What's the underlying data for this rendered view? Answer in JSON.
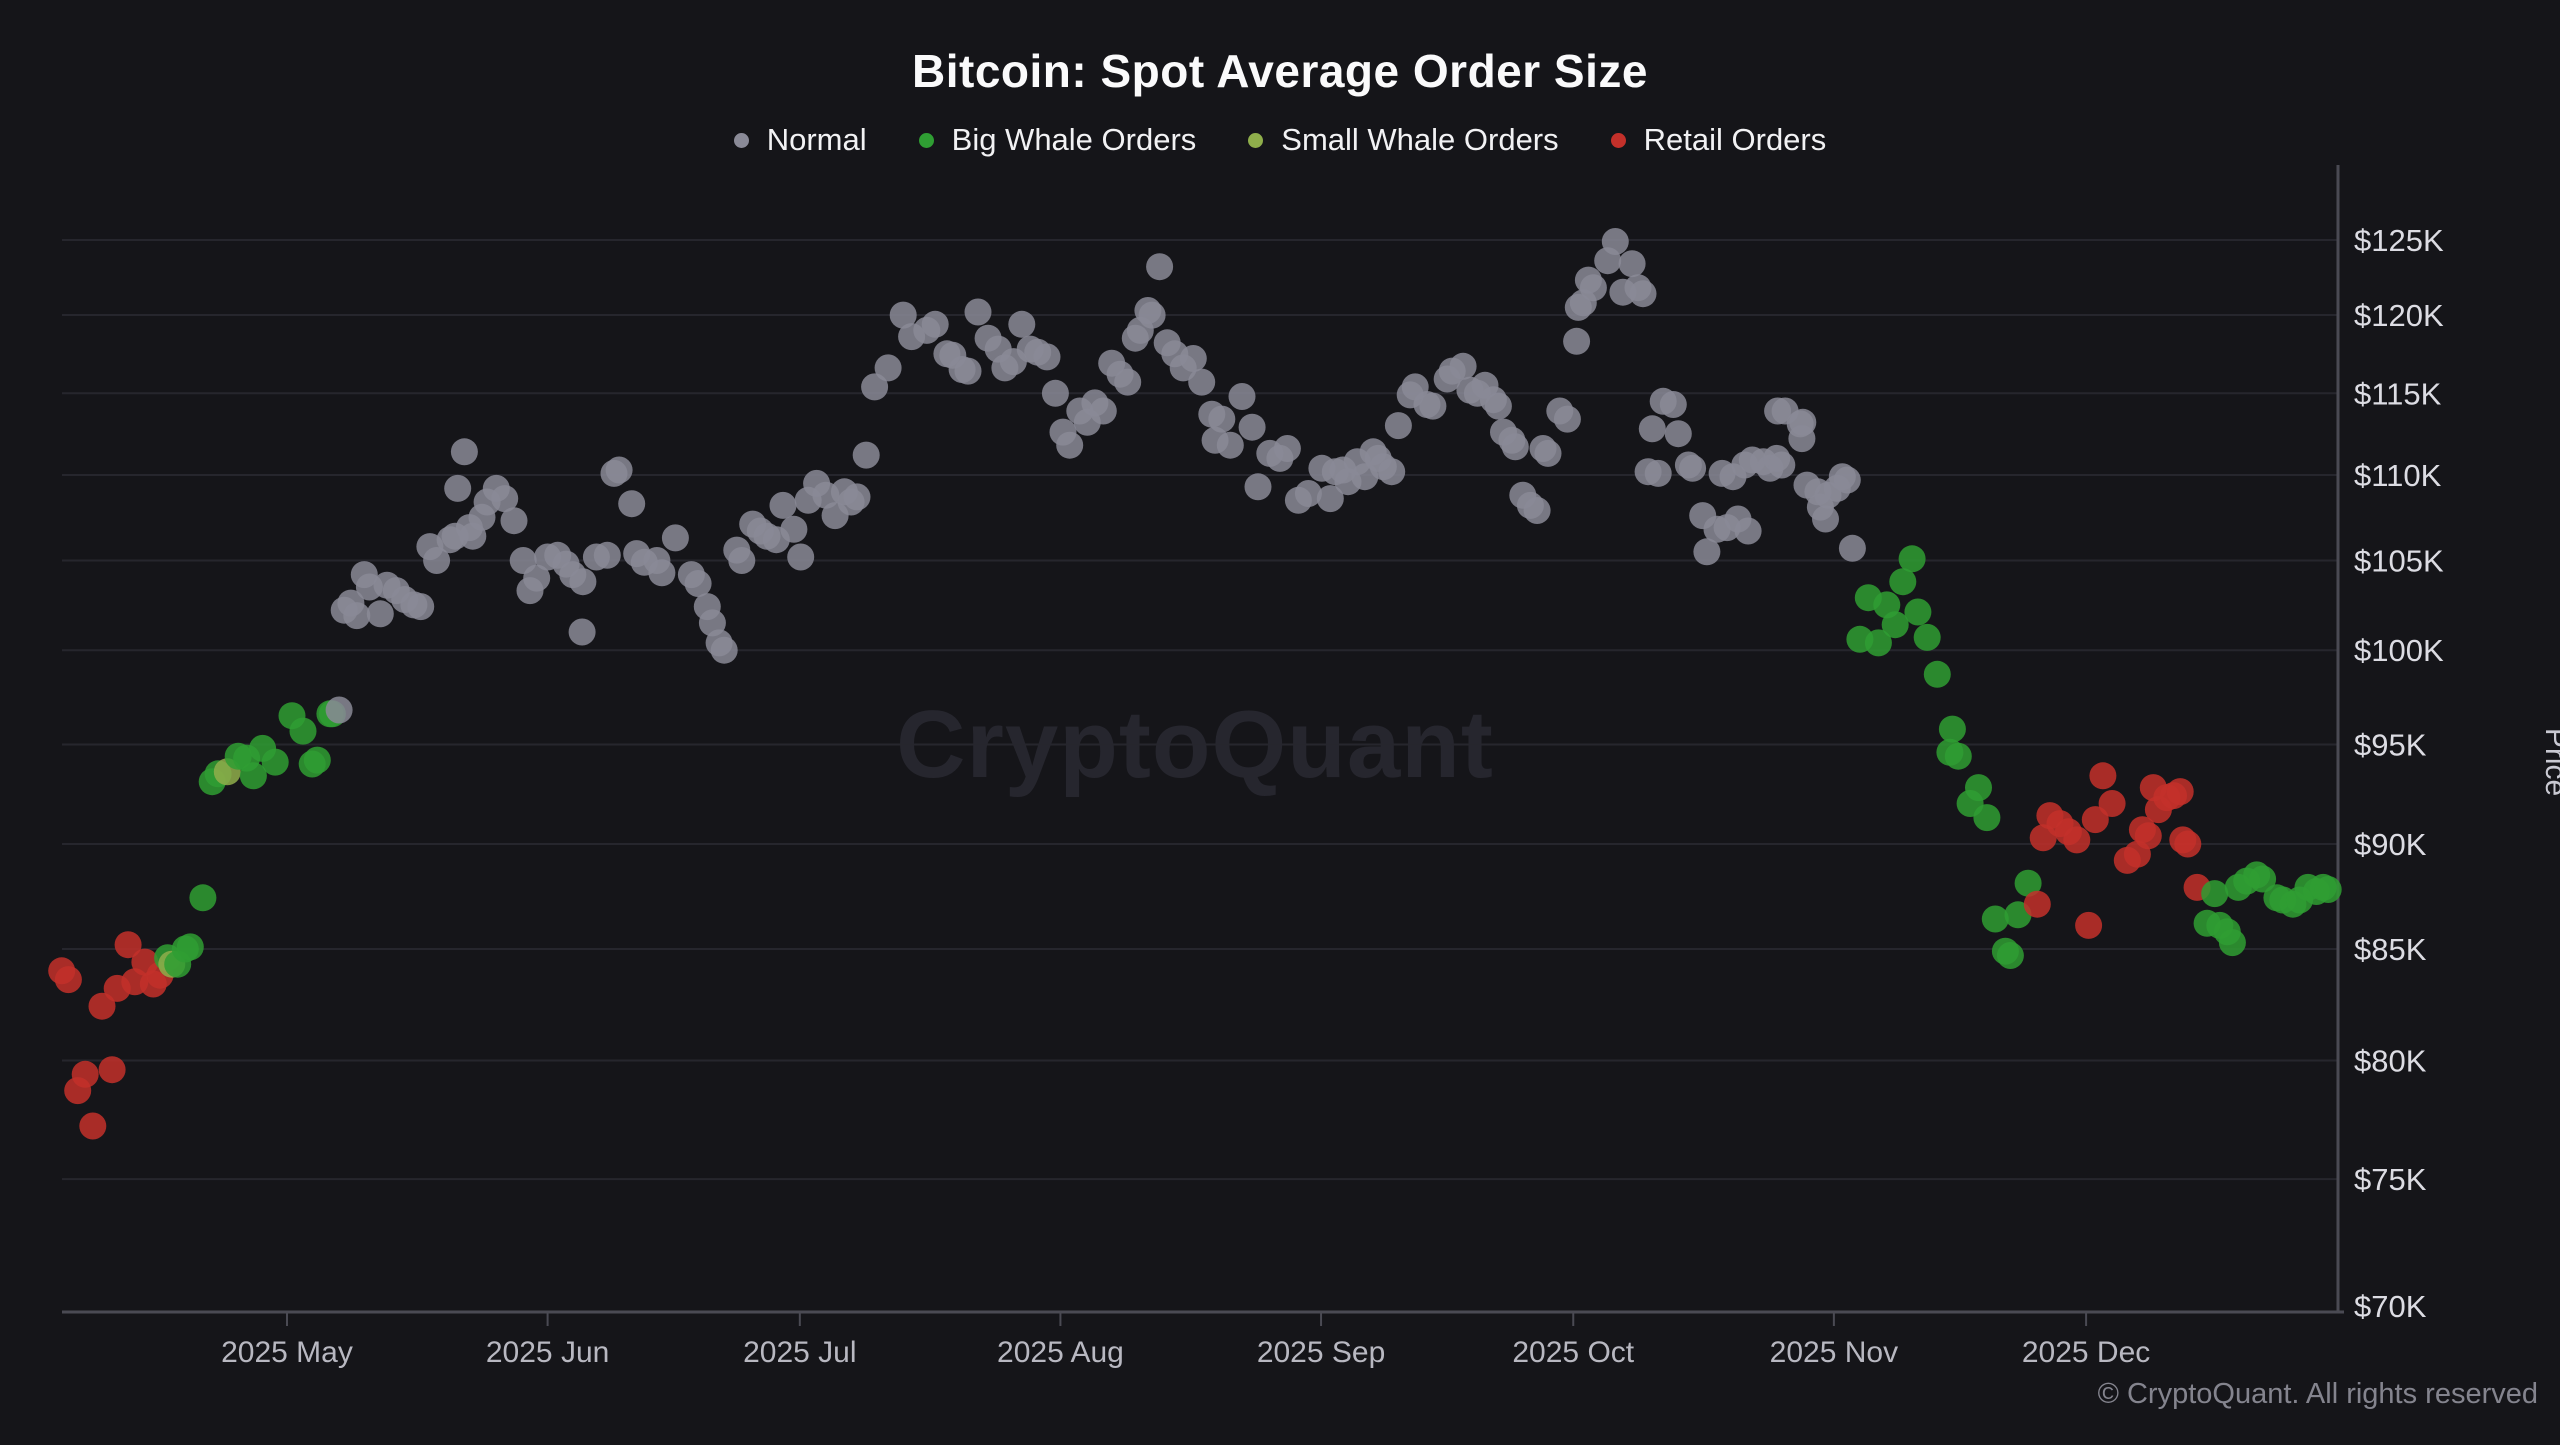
{
  "title": "Bitcoin: Spot Average Order Size",
  "watermark": "CryptoQuant",
  "footer": "© CryptoQuant. All rights reserved",
  "legend": {
    "items": [
      {
        "label": "Normal",
        "color": "#8a8a97"
      },
      {
        "label": "Big Whale Orders",
        "color": "#2f9e33"
      },
      {
        "label": "Small Whale Orders",
        "color": "#8fae4b"
      },
      {
        "label": "Retail Orders",
        "color": "#c3302a"
      }
    ]
  },
  "chart_data": {
    "type": "scatter",
    "title": "Bitcoin: Spot Average Order Size",
    "y_axis": {
      "title": "Price",
      "scale": "log",
      "unit": "USD thousands",
      "ylim": [
        70,
        125
      ],
      "tick_values": [
        125,
        120,
        115,
        110,
        105,
        100,
        95,
        90,
        85,
        80,
        75,
        70
      ],
      "tick_labels": [
        "$125K",
        "$120K",
        "$115K",
        "$110K",
        "$105K",
        "$100K",
        "$95K",
        "$90K",
        "$85K",
        "$80K",
        "$75K",
        "$70K"
      ],
      "grid": true
    },
    "x_axis": {
      "anchor_date": "2025-04-04",
      "unit": "days since anchor_date",
      "range_days": [
        0,
        271
      ],
      "month_ticks": [
        {
          "label": "2025 May",
          "day": 27
        },
        {
          "label": "2025 Jun",
          "day": 58
        },
        {
          "label": "2025 Jul",
          "day": 88
        },
        {
          "label": "2025 Aug",
          "day": 119
        },
        {
          "label": "2025 Sep",
          "day": 150
        },
        {
          "label": "2025 Oct",
          "day": 180
        },
        {
          "label": "2025 Nov",
          "day": 211
        },
        {
          "label": "2025 Dec",
          "day": 241
        }
      ]
    },
    "categories": [
      "Normal",
      "Big Whale Orders",
      "Small Whale Orders",
      "Retail Orders"
    ],
    "category_colors": [
      "#8a8a97",
      "#2f9e33",
      "#8fae4b",
      "#c3302a"
    ],
    "point_format": "[day_offset, price_k_usd, category_index]",
    "points": [
      [
        0.2,
        84.0,
        3
      ],
      [
        1.0,
        83.6,
        3
      ],
      [
        2.1,
        78.7,
        3
      ],
      [
        3.0,
        79.4,
        3
      ],
      [
        3.9,
        77.2,
        3
      ],
      [
        5.0,
        82.4,
        3
      ],
      [
        6.2,
        79.6,
        3
      ],
      [
        6.8,
        83.2,
        3
      ],
      [
        8.1,
        85.2,
        3
      ],
      [
        8.9,
        83.5,
        3
      ],
      [
        10.1,
        84.4,
        3
      ],
      [
        11.1,
        83.4,
        3
      ],
      [
        11.9,
        83.8,
        3
      ],
      [
        12.8,
        84.6,
        1
      ],
      [
        13.3,
        84.3,
        2
      ],
      [
        14.0,
        84.3,
        1
      ],
      [
        14.9,
        85.0,
        1
      ],
      [
        15.5,
        85.1,
        1
      ],
      [
        17.0,
        87.4,
        1
      ],
      [
        18.1,
        93.1,
        1
      ],
      [
        18.8,
        93.5,
        1
      ],
      [
        19.9,
        93.6,
        2
      ],
      [
        21.2,
        94.4,
        1
      ],
      [
        22.2,
        94.3,
        1
      ],
      [
        23.0,
        93.4,
        1
      ],
      [
        24.1,
        94.8,
        1
      ],
      [
        25.6,
        94.1,
        1
      ],
      [
        27.6,
        96.5,
        1
      ],
      [
        28.9,
        95.7,
        1
      ],
      [
        30.0,
        94.0,
        1
      ],
      [
        30.6,
        94.2,
        1
      ],
      [
        32.1,
        96.6,
        1
      ],
      [
        32.4,
        96.6,
        1
      ],
      [
        33.2,
        96.8,
        0
      ],
      [
        33.8,
        102.2,
        0
      ],
      [
        34.6,
        102.6,
        0
      ],
      [
        35.3,
        101.9,
        0
      ],
      [
        36.2,
        104.2,
        0
      ],
      [
        36.8,
        103.5,
        0
      ],
      [
        38.1,
        102.0,
        0
      ],
      [
        38.9,
        103.6,
        0
      ],
      [
        40.0,
        103.3,
        0
      ],
      [
        41.0,
        102.8,
        0
      ],
      [
        42.1,
        102.5,
        0
      ],
      [
        42.9,
        102.4,
        0
      ],
      [
        44.0,
        105.8,
        0
      ],
      [
        44.8,
        105.0,
        0
      ],
      [
        46.4,
        106.2,
        0
      ],
      [
        47.0,
        106.4,
        0
      ],
      [
        47.3,
        109.2,
        0
      ],
      [
        48.1,
        111.4,
        0
      ],
      [
        48.7,
        106.9,
        0
      ],
      [
        49.1,
        106.4,
        0
      ],
      [
        50.2,
        107.5,
        0
      ],
      [
        50.8,
        108.4,
        0
      ],
      [
        51.9,
        109.2,
        0
      ],
      [
        52.9,
        108.6,
        0
      ],
      [
        54.0,
        107.3,
        0
      ],
      [
        55.1,
        105.0,
        0
      ],
      [
        55.9,
        103.3,
        0
      ],
      [
        56.7,
        104.0,
        0
      ],
      [
        58.0,
        105.2,
        0
      ],
      [
        59.2,
        105.3,
        0
      ],
      [
        60.2,
        104.8,
        0
      ],
      [
        61.0,
        104.2,
        0
      ],
      [
        62.1,
        101.0,
        0
      ],
      [
        62.2,
        103.8,
        0
      ],
      [
        63.8,
        105.2,
        0
      ],
      [
        65.1,
        105.3,
        0
      ],
      [
        65.9,
        110.1,
        0
      ],
      [
        66.5,
        110.3,
        0
      ],
      [
        68.0,
        108.3,
        0
      ],
      [
        68.6,
        105.4,
        0
      ],
      [
        69.5,
        104.9,
        0
      ],
      [
        71.0,
        105.0,
        0
      ],
      [
        71.6,
        104.3,
        0
      ],
      [
        73.2,
        106.3,
        0
      ],
      [
        75.1,
        104.2,
        0
      ],
      [
        75.9,
        103.7,
        0
      ],
      [
        77.0,
        102.4,
        0
      ],
      [
        77.6,
        101.5,
        0
      ],
      [
        78.4,
        100.4,
        0
      ],
      [
        79.0,
        100.0,
        0
      ],
      [
        80.5,
        105.6,
        0
      ],
      [
        81.1,
        105.0,
        0
      ],
      [
        82.4,
        107.1,
        0
      ],
      [
        83.3,
        106.7,
        0
      ],
      [
        84.1,
        106.4,
        0
      ],
      [
        85.2,
        106.2,
        0
      ],
      [
        86.0,
        108.2,
        0
      ],
      [
        87.3,
        106.8,
        0
      ],
      [
        88.1,
        105.2,
        0
      ],
      [
        89.0,
        108.5,
        0
      ],
      [
        90.0,
        109.5,
        0
      ],
      [
        91.1,
        108.8,
        0
      ],
      [
        92.2,
        107.6,
        0
      ],
      [
        93.3,
        109.0,
        0
      ],
      [
        94.1,
        108.4,
        0
      ],
      [
        94.8,
        108.7,
        0
      ],
      [
        95.9,
        111.2,
        0
      ],
      [
        96.9,
        115.4,
        0
      ],
      [
        98.5,
        116.6,
        0
      ],
      [
        100.3,
        120.0,
        0
      ],
      [
        101.3,
        118.6,
        0
      ],
      [
        103.1,
        119.0,
        0
      ],
      [
        104.1,
        119.4,
        0
      ],
      [
        105.5,
        117.5,
        0
      ],
      [
        106.2,
        117.4,
        0
      ],
      [
        107.3,
        116.5,
        0
      ],
      [
        108.0,
        116.4,
        0
      ],
      [
        109.2,
        120.2,
        0
      ],
      [
        110.4,
        118.5,
        0
      ],
      [
        111.6,
        117.8,
        0
      ],
      [
        112.4,
        116.6,
        0
      ],
      [
        113.4,
        117.0,
        0
      ],
      [
        114.4,
        119.4,
        0
      ],
      [
        115.4,
        117.8,
        0
      ],
      [
        116.3,
        117.6,
        0
      ],
      [
        117.4,
        117.3,
        0
      ],
      [
        118.4,
        115.0,
        0
      ],
      [
        119.3,
        112.6,
        0
      ],
      [
        120.1,
        111.8,
        0
      ],
      [
        121.3,
        113.9,
        0
      ],
      [
        122.2,
        113.2,
        0
      ],
      [
        123.1,
        114.4,
        0
      ],
      [
        124.1,
        113.9,
        0
      ],
      [
        125.1,
        116.9,
        0
      ],
      [
        126.1,
        116.2,
        0
      ],
      [
        127.0,
        115.7,
        0
      ],
      [
        127.9,
        118.5,
        0
      ],
      [
        128.5,
        119.0,
        0
      ],
      [
        129.4,
        120.3,
        0
      ],
      [
        129.9,
        120.0,
        0
      ],
      [
        130.8,
        123.2,
        0
      ],
      [
        131.7,
        118.2,
        0
      ],
      [
        132.6,
        117.5,
        0
      ],
      [
        133.6,
        116.6,
        0
      ],
      [
        134.8,
        117.2,
        0
      ],
      [
        135.8,
        115.7,
        0
      ],
      [
        137.0,
        113.7,
        0
      ],
      [
        137.4,
        112.1,
        0
      ],
      [
        138.2,
        113.4,
        0
      ],
      [
        139.2,
        111.8,
        0
      ],
      [
        140.6,
        114.8,
        0
      ],
      [
        141.8,
        112.9,
        0
      ],
      [
        142.5,
        109.3,
        0
      ],
      [
        143.9,
        111.3,
        0
      ],
      [
        145.1,
        111.0,
        0
      ],
      [
        146.0,
        111.6,
        0
      ],
      [
        147.3,
        108.5,
        0
      ],
      [
        148.5,
        108.9,
        0
      ],
      [
        150.1,
        110.4,
        0
      ],
      [
        151.1,
        108.6,
        0
      ],
      [
        151.7,
        110.2,
        0
      ],
      [
        152.6,
        110.3,
        0
      ],
      [
        153.2,
        109.6,
        0
      ],
      [
        154.3,
        110.8,
        0
      ],
      [
        155.2,
        109.9,
        0
      ],
      [
        156.2,
        111.4,
        0
      ],
      [
        156.8,
        111.0,
        0
      ],
      [
        157.4,
        110.5,
        0
      ],
      [
        158.4,
        110.2,
        0
      ],
      [
        159.2,
        113.0,
        0
      ],
      [
        160.6,
        114.9,
        0
      ],
      [
        161.2,
        115.4,
        0
      ],
      [
        162.6,
        114.3,
        0
      ],
      [
        163.3,
        114.2,
        0
      ],
      [
        165.0,
        115.9,
        0
      ],
      [
        165.6,
        116.4,
        0
      ],
      [
        166.9,
        116.7,
        0
      ],
      [
        167.7,
        115.2,
        0
      ],
      [
        168.6,
        115.0,
        0
      ],
      [
        169.5,
        115.5,
        0
      ],
      [
        170.5,
        114.6,
        0
      ],
      [
        171.1,
        114.2,
        0
      ],
      [
        171.7,
        112.6,
        0
      ],
      [
        172.7,
        112.1,
        0
      ],
      [
        173.1,
        111.7,
        0
      ],
      [
        174.0,
        108.8,
        0
      ],
      [
        174.9,
        108.2,
        0
      ],
      [
        175.7,
        107.9,
        0
      ],
      [
        176.4,
        111.6,
        0
      ],
      [
        177.0,
        111.3,
        0
      ],
      [
        178.4,
        113.9,
        0
      ],
      [
        179.3,
        113.4,
        0
      ],
      [
        180.4,
        118.3,
        0
      ],
      [
        180.6,
        120.5,
        0
      ],
      [
        181.2,
        120.8,
        0
      ],
      [
        181.8,
        122.3,
        0
      ],
      [
        182.4,
        121.8,
        0
      ],
      [
        184.1,
        123.6,
        0
      ],
      [
        185.0,
        124.9,
        0
      ],
      [
        185.9,
        121.5,
        0
      ],
      [
        187.0,
        123.4,
        0
      ],
      [
        187.7,
        121.8,
        0
      ],
      [
        188.3,
        121.4,
        0
      ],
      [
        188.9,
        110.2,
        0
      ],
      [
        189.4,
        112.8,
        0
      ],
      [
        190.1,
        110.1,
        0
      ],
      [
        190.7,
        114.5,
        0
      ],
      [
        191.9,
        114.3,
        0
      ],
      [
        192.5,
        112.5,
        0
      ],
      [
        193.7,
        110.6,
        0
      ],
      [
        194.2,
        110.4,
        0
      ],
      [
        195.4,
        107.6,
        0
      ],
      [
        195.9,
        105.5,
        0
      ],
      [
        197.1,
        106.8,
        0
      ],
      [
        197.7,
        110.1,
        0
      ],
      [
        198.3,
        106.9,
        0
      ],
      [
        199.0,
        109.9,
        0
      ],
      [
        199.6,
        107.4,
        0
      ],
      [
        200.4,
        110.6,
        0
      ],
      [
        200.8,
        106.7,
        0
      ],
      [
        201.3,
        110.9,
        0
      ],
      [
        202.6,
        110.8,
        0
      ],
      [
        203.4,
        110.4,
        0
      ],
      [
        204.2,
        111.0,
        0
      ],
      [
        204.3,
        113.9,
        0
      ],
      [
        204.8,
        110.6,
        0
      ],
      [
        205.2,
        113.9,
        0
      ],
      [
        207.0,
        113.1,
        0
      ],
      [
        207.2,
        112.2,
        0
      ],
      [
        207.3,
        113.2,
        0
      ],
      [
        207.8,
        109.4,
        0
      ],
      [
        209.1,
        109.0,
        0
      ],
      [
        209.4,
        108.1,
        0
      ],
      [
        210.0,
        107.4,
        0
      ],
      [
        210.3,
        108.8,
        0
      ],
      [
        211.4,
        109.2,
        0
      ],
      [
        212.0,
        109.9,
        0
      ],
      [
        212.6,
        109.7,
        0
      ],
      [
        213.2,
        105.7,
        0
      ],
      [
        214.1,
        100.6,
        1
      ],
      [
        215.1,
        102.9,
        1
      ],
      [
        216.3,
        100.4,
        1
      ],
      [
        217.3,
        102.5,
        1
      ],
      [
        218.3,
        101.4,
        1
      ],
      [
        219.2,
        103.8,
        1
      ],
      [
        220.3,
        105.1,
        1
      ],
      [
        221.0,
        102.1,
        1
      ],
      [
        222.1,
        100.7,
        1
      ],
      [
        223.3,
        98.7,
        1
      ],
      [
        224.8,
        94.6,
        1
      ],
      [
        225.1,
        95.8,
        1
      ],
      [
        225.8,
        94.4,
        1
      ],
      [
        227.2,
        92.0,
        1
      ],
      [
        228.2,
        92.8,
        1
      ],
      [
        229.2,
        91.3,
        1
      ],
      [
        230.2,
        86.4,
        1
      ],
      [
        231.4,
        84.9,
        1
      ],
      [
        232.0,
        84.7,
        1
      ],
      [
        232.9,
        86.6,
        1
      ],
      [
        234.1,
        88.1,
        1
      ],
      [
        235.2,
        87.1,
        3
      ],
      [
        235.9,
        90.3,
        3
      ],
      [
        236.7,
        91.4,
        3
      ],
      [
        237.9,
        91.0,
        3
      ],
      [
        238.9,
        90.6,
        3
      ],
      [
        239.9,
        90.2,
        3
      ],
      [
        241.3,
        86.1,
        3
      ],
      [
        242.1,
        91.2,
        3
      ],
      [
        243.0,
        93.4,
        3
      ],
      [
        244.1,
        92.0,
        3
      ],
      [
        245.9,
        89.2,
        3
      ],
      [
        247.1,
        89.5,
        3
      ],
      [
        247.7,
        90.7,
        3
      ],
      [
        248.4,
        90.4,
        3
      ],
      [
        249.0,
        92.8,
        3
      ],
      [
        249.6,
        91.7,
        3
      ],
      [
        250.6,
        92.3,
        3
      ],
      [
        251.4,
        92.4,
        3
      ],
      [
        252.2,
        92.6,
        3
      ],
      [
        252.5,
        90.2,
        3
      ],
      [
        253.1,
        90.0,
        3
      ],
      [
        254.2,
        87.9,
        3
      ],
      [
        255.4,
        86.2,
        1
      ],
      [
        256.3,
        87.6,
        1
      ],
      [
        256.9,
        86.1,
        1
      ],
      [
        257.8,
        85.8,
        1
      ],
      [
        258.4,
        85.3,
        1
      ],
      [
        259.1,
        87.9,
        1
      ],
      [
        260.1,
        88.2,
        1
      ],
      [
        261.3,
        88.5,
        1
      ],
      [
        262.0,
        88.3,
        1
      ],
      [
        263.7,
        87.4,
        1
      ],
      [
        264.4,
        87.3,
        1
      ],
      [
        265.6,
        87.1,
        1
      ],
      [
        266.4,
        87.3,
        1
      ],
      [
        267.4,
        87.9,
        1
      ],
      [
        268.4,
        87.7,
        1
      ],
      [
        269.2,
        87.9,
        1
      ],
      [
        269.8,
        87.8,
        1
      ]
    ]
  }
}
